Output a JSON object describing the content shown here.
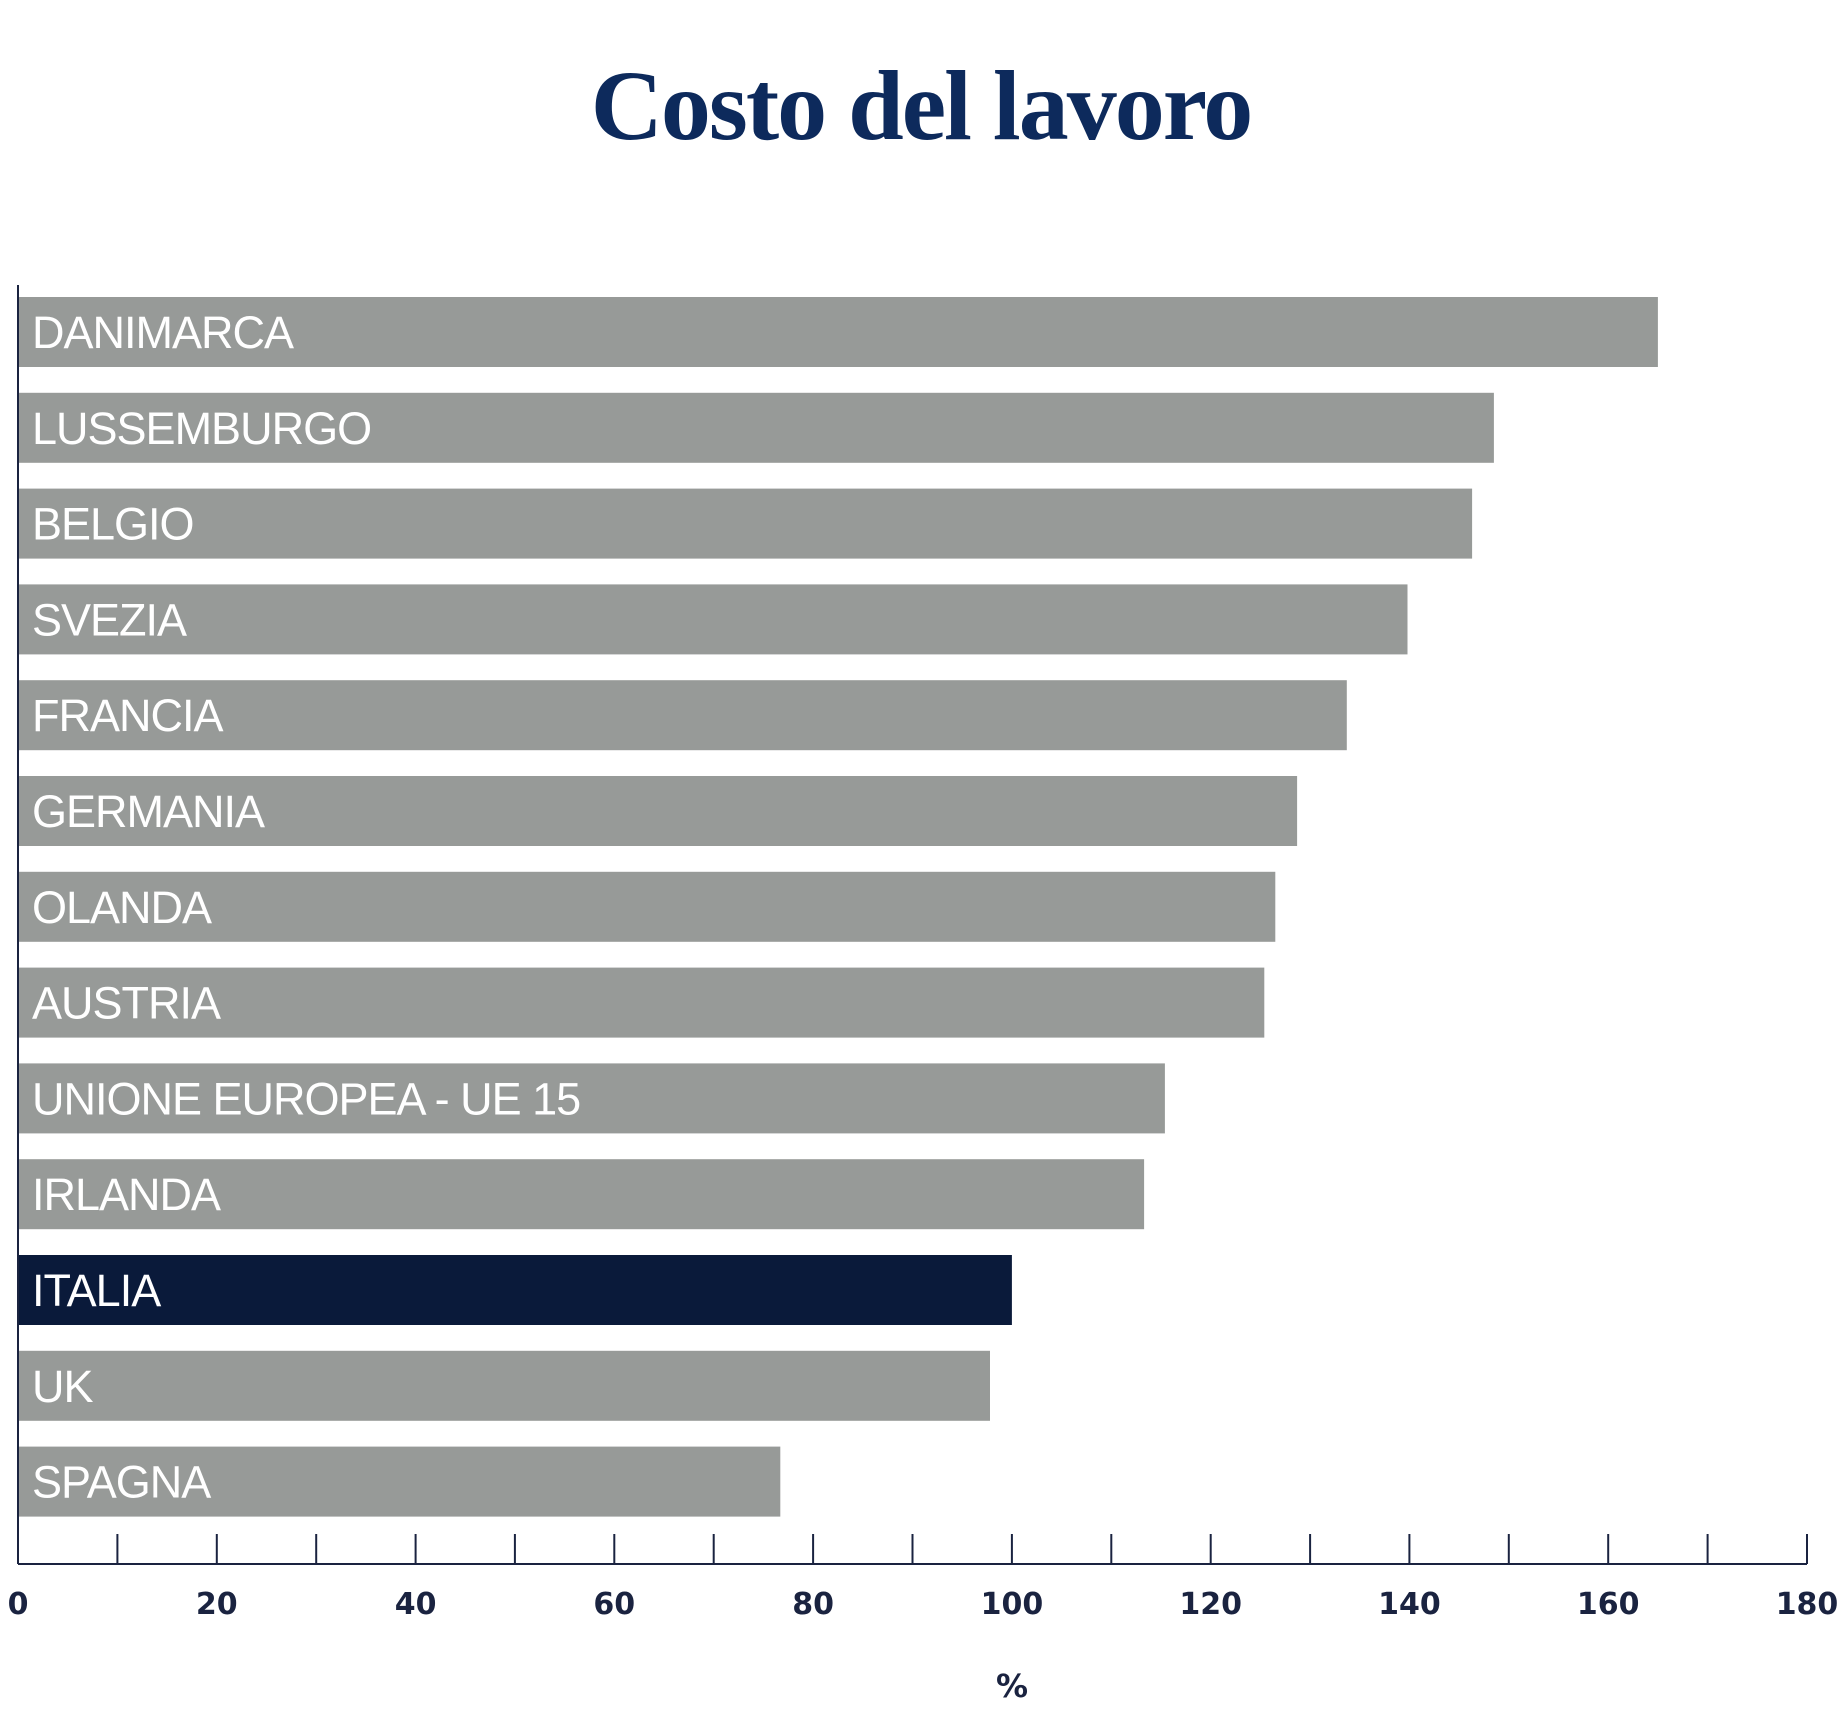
{
  "chart_data": {
    "type": "bar",
    "orientation": "horizontal",
    "title": "Costo del lavoro",
    "xlabel": "%",
    "ylabel": "",
    "xlim": [
      0,
      180
    ],
    "major_ticks": [
      0,
      20,
      40,
      60,
      80,
      100,
      120,
      140,
      160,
      180
    ],
    "minor_tick_step": 10,
    "grid": false,
    "legend": "none",
    "categories": [
      "DANIMARCA",
      "LUSSEMBURGO",
      "BELGIO",
      "SVEZIA",
      "FRANCIA",
      "GERMANIA",
      "OLANDA",
      "AUSTRIA",
      "UNIONE EUROPEA - UE 15",
      "IRLANDA",
      "ITALIA",
      "UK",
      "SPAGNA"
    ],
    "values": [
      165,
      148.5,
      146.3,
      139.8,
      133.7,
      128.7,
      126.5,
      125.4,
      115.4,
      113.3,
      100,
      97.8,
      76.7
    ],
    "highlight": "ITALIA",
    "colors": {
      "bar": "#979a98",
      "highlight": "#0a1a3a",
      "title": "#0d2a5c",
      "axis": "#1a2340",
      "label": "#ffffff"
    }
  }
}
